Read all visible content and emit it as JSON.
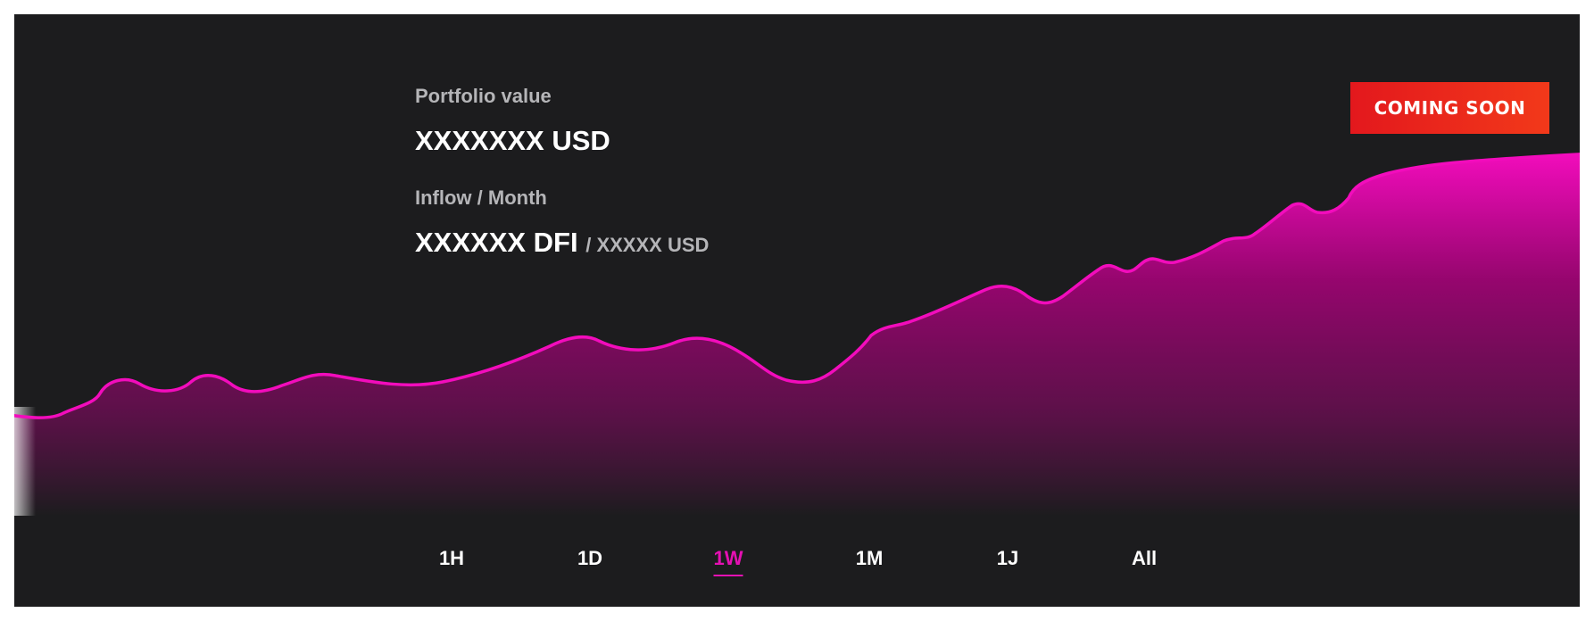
{
  "portfolio": {
    "label": "Portfolio value",
    "value": "XXXXXXX USD"
  },
  "inflow": {
    "label": "Inflow / Month",
    "value": "XXXXXX DFI",
    "sub_value": "/ XXXXX USD"
  },
  "badge": {
    "label": "COMING SOON",
    "color": "#e3181d"
  },
  "time_ranges": [
    {
      "label": "1H",
      "active": false
    },
    {
      "label": "1D",
      "active": false
    },
    {
      "label": "1W",
      "active": true
    },
    {
      "label": "1M",
      "active": false
    },
    {
      "label": "1J",
      "active": false
    },
    {
      "label": "All",
      "active": false
    }
  ],
  "colors": {
    "accent": "#e510b3",
    "panel_background": "#1c1c1e",
    "label_text": "#b5b5b8"
  }
}
